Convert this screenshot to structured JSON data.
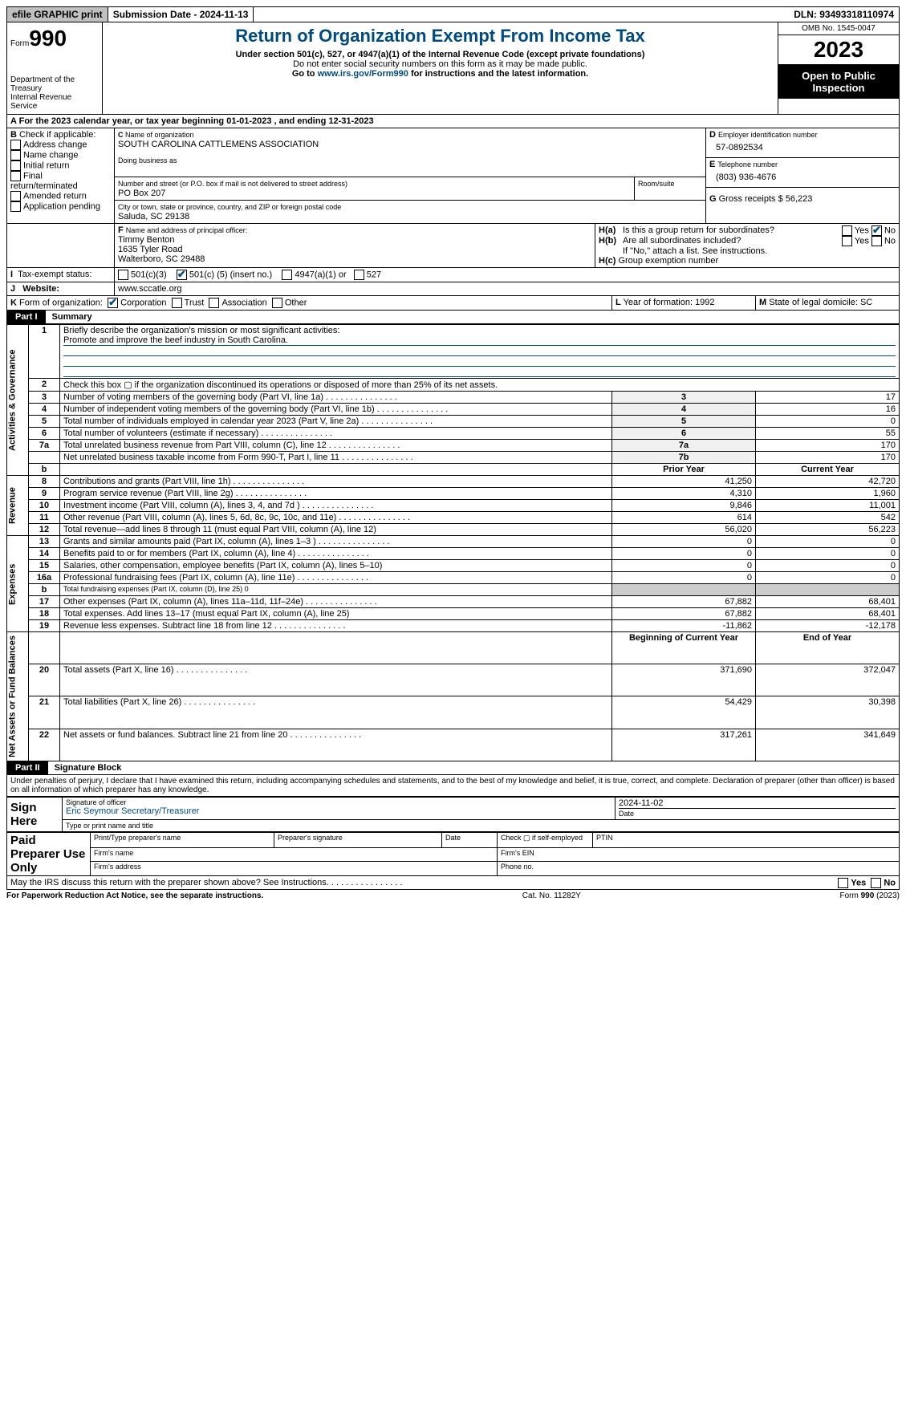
{
  "topbar": {
    "efile": "efile GRAPHIC print",
    "subdate_label": "Submission Date - ",
    "subdate": "2024-11-13",
    "dln_label": "DLN: ",
    "dln": "93493318110974"
  },
  "hdr": {
    "form_label": "Form",
    "form_num": "990",
    "dept": "Department of the Treasury",
    "irs": "Internal Revenue Service",
    "title": "Return of Organization Exempt From Income Tax",
    "sub1": "Under section 501(c), 527, or 4947(a)(1) of the Internal Revenue Code (except private foundations)",
    "sub2": "Do not enter social security numbers on this form as it may be made public.",
    "sub3_pre": "Go to ",
    "sub3_link": "www.irs.gov/Form990",
    "sub3_post": " for instructions and the latest information.",
    "omb": "OMB No. 1545-0047",
    "year": "2023",
    "inspect": "Open to Public Inspection"
  },
  "A": {
    "text": "For the 2023 calendar year, or tax year beginning 01-01-2023   , and ending 12-31-2023"
  },
  "B": {
    "label": "Check if applicable:",
    "opts": [
      "Address change",
      "Name change",
      "Initial return",
      "Final return/terminated",
      "Amended return",
      "Application pending"
    ]
  },
  "C": {
    "name_label": "Name of organization",
    "name": "SOUTH CAROLINA CATTLEMENS ASSOCIATION",
    "dba_label": "Doing business as",
    "dba": "",
    "street_label": "Number and street (or P.O. box if mail is not delivered to street address)",
    "room_label": "Room/suite",
    "street": "PO Box 207",
    "city_label": "City or town, state or province, country, and ZIP or foreign postal code",
    "city": "Saluda, SC  29138"
  },
  "D": {
    "label": "Employer identification number",
    "val": "57-0892534"
  },
  "E": {
    "label": "Telephone number",
    "val": "(803) 936-4676"
  },
  "G": {
    "label": "Gross receipts $ ",
    "val": "56,223"
  },
  "F": {
    "label": "Name and address of principal officer:",
    "name": "Timmy Benton",
    "l1": "1635 Tyler Road",
    "l2": "Walterboro, SC  29488"
  },
  "H": {
    "a": "Is this a group return for subordinates?",
    "a_yes": "Yes",
    "a_no": "No",
    "b": "Are all subordinates included?",
    "b_yes": "Yes",
    "b_no": "No",
    "note": "If \"No,\" attach a list. See instructions.",
    "c": "Group exemption number"
  },
  "I": {
    "label": "Tax-exempt status:",
    "o1": "501(c)(3)",
    "o2_pre": "501(c) (",
    "o2_num": "5",
    "o2_post": ") (insert no.)",
    "o3": "4947(a)(1) or",
    "o4": "527"
  },
  "J": {
    "label": "Website:",
    "val": "www.sccatle.org"
  },
  "K": {
    "label": "Form of organization:",
    "opts": [
      "Corporation",
      "Trust",
      "Association",
      "Other"
    ]
  },
  "L": {
    "label": "Year of formation: ",
    "val": "1992"
  },
  "M": {
    "label": "State of legal domicile: ",
    "val": "SC"
  },
  "partI": {
    "num": "Part I",
    "title": "Summary"
  },
  "s1": {
    "q": "Briefly describe the organization's mission or most significant activities:",
    "a": "Promote and improve the beef industry in South Carolina."
  },
  "gov": [
    {
      "n": "2",
      "desc": "Check this box ▢ if the organization discontinued its operations or disposed of more than 25% of its net assets."
    },
    {
      "n": "3",
      "desc": "Number of voting members of the governing body (Part VI, line 1a)",
      "k": "3",
      "v": "17"
    },
    {
      "n": "4",
      "desc": "Number of independent voting members of the governing body (Part VI, line 1b)",
      "k": "4",
      "v": "16"
    },
    {
      "n": "5",
      "desc": "Total number of individuals employed in calendar year 2023 (Part V, line 2a)",
      "k": "5",
      "v": "0"
    },
    {
      "n": "6",
      "desc": "Total number of volunteers (estimate if necessary)",
      "k": "6",
      "v": "55"
    },
    {
      "n": "7a",
      "desc": "Total unrelated business revenue from Part VIII, column (C), line 12",
      "k": "7a",
      "v": "170"
    },
    {
      "n": "",
      "desc": "Net unrelated business taxable income from Form 990-T, Part I, line 11",
      "k": "7b",
      "v": "170"
    }
  ],
  "colhdr": {
    "prior": "Prior Year",
    "curr": "Current Year",
    "boy": "Beginning of Current Year",
    "eoy": "End of Year"
  },
  "rev": [
    {
      "n": "8",
      "desc": "Contributions and grants (Part VIII, line 1h)",
      "p": "41,250",
      "c": "42,720"
    },
    {
      "n": "9",
      "desc": "Program service revenue (Part VIII, line 2g)",
      "p": "4,310",
      "c": "1,960"
    },
    {
      "n": "10",
      "desc": "Investment income (Part VIII, column (A), lines 3, 4, and 7d )",
      "p": "9,846",
      "c": "11,001"
    },
    {
      "n": "11",
      "desc": "Other revenue (Part VIII, column (A), lines 5, 6d, 8c, 9c, 10c, and 11e)",
      "p": "614",
      "c": "542"
    },
    {
      "n": "12",
      "desc": "Total revenue—add lines 8 through 11 (must equal Part VIII, column (A), line 12)",
      "p": "56,020",
      "c": "56,223"
    }
  ],
  "exp": [
    {
      "n": "13",
      "desc": "Grants and similar amounts paid (Part IX, column (A), lines 1–3 )",
      "p": "0",
      "c": "0"
    },
    {
      "n": "14",
      "desc": "Benefits paid to or for members (Part IX, column (A), line 4)",
      "p": "0",
      "c": "0"
    },
    {
      "n": "15",
      "desc": "Salaries, other compensation, employee benefits (Part IX, column (A), lines 5–10)",
      "p": "0",
      "c": "0"
    },
    {
      "n": "16a",
      "desc": "Professional fundraising fees (Part IX, column (A), line 11e)",
      "p": "0",
      "c": "0"
    },
    {
      "n": "b",
      "desc": "Total fundraising expenses (Part IX, column (D), line 25) 0",
      "p": "",
      "c": "",
      "grey": true,
      "sm": true
    },
    {
      "n": "17",
      "desc": "Other expenses (Part IX, column (A), lines 11a–11d, 11f–24e)",
      "p": "67,882",
      "c": "68,401"
    },
    {
      "n": "18",
      "desc": "Total expenses. Add lines 13–17 (must equal Part IX, column (A), line 25)",
      "p": "67,882",
      "c": "68,401"
    },
    {
      "n": "19",
      "desc": "Revenue less expenses. Subtract line 18 from line 12",
      "p": "-11,862",
      "c": "-12,178"
    }
  ],
  "net": [
    {
      "n": "20",
      "desc": "Total assets (Part X, line 16)",
      "p": "371,690",
      "c": "372,047"
    },
    {
      "n": "21",
      "desc": "Total liabilities (Part X, line 26)",
      "p": "54,429",
      "c": "30,398"
    },
    {
      "n": "22",
      "desc": "Net assets or fund balances. Subtract line 21 from line 20",
      "p": "317,261",
      "c": "341,649"
    }
  ],
  "vlabels": {
    "gov": "Activities & Governance",
    "rev": "Revenue",
    "exp": "Expenses",
    "net": "Net Assets or Fund Balances"
  },
  "partII": {
    "num": "Part II",
    "title": "Signature Block"
  },
  "perjury": "Under penalties of perjury, I declare that I have examined this return, including accompanying schedules and statements, and to the best of my knowledge and belief, it is true, correct, and complete. Declaration of preparer (other than officer) is based on all information of which preparer has any knowledge.",
  "sign": {
    "here": "Sign Here",
    "sig_label": "Signature of officer",
    "date_label": "Date",
    "date": "2024-11-02",
    "officer": "Eric Seymour Secretary/Treasurer",
    "type_label": "Type or print name and title"
  },
  "paid": {
    "title": "Paid Preparer Use Only",
    "name_label": "Print/Type preparer's name",
    "sig_label": "Preparer's signature",
    "date_label": "Date",
    "self_label": "Check ▢ if self-employed",
    "ptin_label": "PTIN",
    "firm_name": "Firm's name",
    "firm_ein": "Firm's EIN",
    "firm_addr": "Firm's address",
    "phone": "Phone no."
  },
  "discuss": {
    "q": "May the IRS discuss this return with the preparer shown above? See Instructions.",
    "yes": "Yes",
    "no": "No"
  },
  "foot": {
    "l": "For Paperwork Reduction Act Notice, see the separate instructions.",
    "c": "Cat. No. 11282Y",
    "r": "Form 990 (2023)"
  }
}
